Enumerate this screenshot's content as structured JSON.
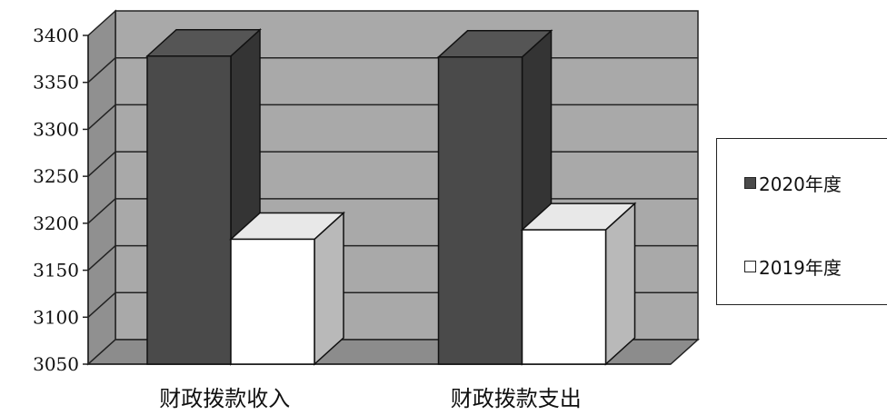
{
  "chart_data": {
    "type": "bar",
    "categories": [
      "财政拨款收入",
      "财政拨款支出"
    ],
    "series": [
      {
        "name": "2020年度",
        "values": [
          3378,
          3377
        ],
        "color": "#4a4a4a"
      },
      {
        "name": "2019年度",
        "values": [
          3183,
          3193
        ],
        "color": "#ffffff"
      }
    ],
    "ylim": [
      3050,
      3400
    ],
    "yticks": [
      3050,
      3100,
      3150,
      3200,
      3250,
      3300,
      3350,
      3400
    ],
    "grid": true,
    "legend_position": "right",
    "style": "3d-column",
    "wall_color": "#a9a9a9",
    "floor_color": "#8c8c8c"
  },
  "legend": {
    "items": [
      {
        "label": "2020年度",
        "color": "#4a4a4a"
      },
      {
        "label": "2019年度",
        "color": "#ffffff"
      }
    ]
  }
}
